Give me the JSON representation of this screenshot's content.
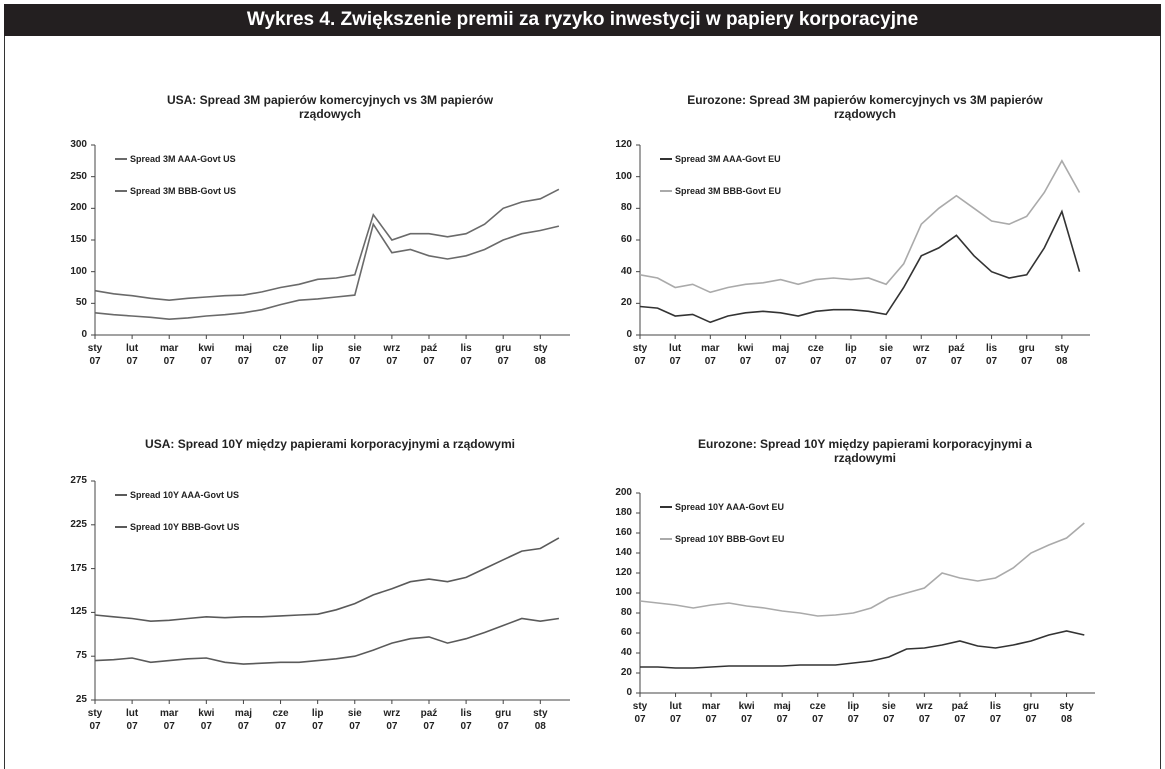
{
  "header": {
    "title": "Wykres 4. Zwiększenie premii za ryzyko inwestycji w papiery korporacyjne"
  },
  "chart_data": [
    {
      "type": "line",
      "title": "USA: Spread 3M papierów komercyjnych vs 3M papierów rządowych",
      "legend": "upper left",
      "x": [
        0,
        0.5,
        1,
        1.5,
        2,
        2.5,
        3,
        3.5,
        4,
        4.5,
        5,
        5.5,
        6,
        6.5,
        7,
        7.5,
        8,
        8.5,
        9,
        9.5,
        10,
        10.5,
        11,
        11.5,
        12,
        12.5
      ],
      "xlim": [
        0,
        12.8
      ],
      "xticks": [
        {
          "value": 0,
          "label": "sty 07"
        },
        {
          "value": 1,
          "label": "lut 07"
        },
        {
          "value": 2,
          "label": "mar 07"
        },
        {
          "value": 3,
          "label": "kwi 07"
        },
        {
          "value": 4,
          "label": "maj 07"
        },
        {
          "value": 5,
          "label": "cze 07"
        },
        {
          "value": 6,
          "label": "lip 07"
        },
        {
          "value": 7,
          "label": "sie 07"
        },
        {
          "value": 8,
          "label": "wrz 07"
        },
        {
          "value": 9,
          "label": "paź 07"
        },
        {
          "value": 10,
          "label": "lis 07"
        },
        {
          "value": 11,
          "label": "gru 07"
        },
        {
          "value": 12,
          "label": "sty 08"
        }
      ],
      "ylim": [
        0,
        300
      ],
      "yticks": [
        0,
        50,
        100,
        150,
        200,
        250,
        300
      ],
      "series": [
        {
          "name": "Spread 3M AAA-Govt US",
          "color": "#6a6a6a",
          "values": [
            35,
            32,
            30,
            28,
            25,
            27,
            30,
            32,
            35,
            40,
            48,
            55,
            57,
            60,
            63,
            175,
            130,
            135,
            125,
            120,
            125,
            135,
            150,
            160,
            165,
            172
          ]
        },
        {
          "name": "Spread 3M BBB-Govt US",
          "color": "#6a6a6a",
          "values": [
            70,
            65,
            62,
            58,
            55,
            58,
            60,
            62,
            63,
            68,
            75,
            80,
            88,
            90,
            95,
            190,
            150,
            160,
            160,
            155,
            160,
            175,
            200,
            210,
            215,
            230
          ]
        }
      ]
    },
    {
      "type": "line",
      "title": "Eurozone: Spread 3M papierów komercyjnych vs 3M papierów rządowych",
      "legend": "upper left",
      "x": [
        0,
        0.5,
        1,
        1.5,
        2,
        2.5,
        3,
        3.5,
        4,
        4.5,
        5,
        5.5,
        6,
        6.5,
        7,
        7.5,
        8,
        8.5,
        9,
        9.5,
        10,
        10.5,
        11,
        11.5,
        12,
        12.5
      ],
      "xlim": [
        0,
        12.8
      ],
      "xticks": [
        {
          "value": 0,
          "label": "sty 07"
        },
        {
          "value": 1,
          "label": "lut 07"
        },
        {
          "value": 2,
          "label": "mar 07"
        },
        {
          "value": 3,
          "label": "kwi 07"
        },
        {
          "value": 4,
          "label": "maj 07"
        },
        {
          "value": 5,
          "label": "cze 07"
        },
        {
          "value": 6,
          "label": "lip 07"
        },
        {
          "value": 7,
          "label": "sie 07"
        },
        {
          "value": 8,
          "label": "wrz 07"
        },
        {
          "value": 9,
          "label": "paź 07"
        },
        {
          "value": 10,
          "label": "lis 07"
        },
        {
          "value": 11,
          "label": "gru 07"
        },
        {
          "value": 12,
          "label": "sty 08"
        }
      ],
      "ylim": [
        0,
        120
      ],
      "yticks": [
        0,
        20,
        40,
        60,
        80,
        100,
        120
      ],
      "series": [
        {
          "name": "Spread 3M AAA-Govt EU",
          "color": "#333333",
          "values": [
            18,
            17,
            12,
            13,
            8,
            12,
            14,
            15,
            14,
            12,
            15,
            16,
            16,
            15,
            13,
            30,
            50,
            55,
            63,
            50,
            40,
            36,
            38,
            55,
            78,
            40
          ]
        },
        {
          "name": "Spread 3M BBB-Govt EU",
          "color": "#aaaaaa",
          "values": [
            38,
            36,
            30,
            32,
            27,
            30,
            32,
            33,
            35,
            32,
            35,
            36,
            35,
            36,
            32,
            45,
            70,
            80,
            88,
            80,
            72,
            70,
            75,
            90,
            110,
            90
          ]
        }
      ]
    },
    {
      "type": "line",
      "title": "USA: Spread 10Y między papierami korporacyjnymi a rządowymi",
      "legend": "upper left",
      "x": [
        0,
        0.5,
        1,
        1.5,
        2,
        2.5,
        3,
        3.5,
        4,
        4.5,
        5,
        5.5,
        6,
        6.5,
        7,
        7.5,
        8,
        8.5,
        9,
        9.5,
        10,
        10.5,
        11,
        11.5,
        12,
        12.5
      ],
      "xlim": [
        0,
        12.8
      ],
      "xticks": [
        {
          "value": 0,
          "label": "sty 07"
        },
        {
          "value": 1,
          "label": "lut 07"
        },
        {
          "value": 2,
          "label": "mar 07"
        },
        {
          "value": 3,
          "label": "kwi 07"
        },
        {
          "value": 4,
          "label": "maj 07"
        },
        {
          "value": 5,
          "label": "cze 07"
        },
        {
          "value": 6,
          "label": "lip 07"
        },
        {
          "value": 7,
          "label": "sie 07"
        },
        {
          "value": 8,
          "label": "wrz 07"
        },
        {
          "value": 9,
          "label": "paź 07"
        },
        {
          "value": 10,
          "label": "lis 07"
        },
        {
          "value": 11,
          "label": "gru 07"
        },
        {
          "value": 12,
          "label": "sty 08"
        }
      ],
      "ylim": [
        25,
        275
      ],
      "yticks": [
        25,
        75,
        125,
        175,
        225,
        275
      ],
      "series": [
        {
          "name": "Spread 10Y AAA-Govt US",
          "color": "#5a5a5a",
          "values": [
            70,
            71,
            73,
            68,
            70,
            72,
            73,
            68,
            66,
            67,
            68,
            68,
            70,
            72,
            75,
            82,
            90,
            95,
            97,
            90,
            95,
            102,
            110,
            118,
            115,
            118
          ]
        },
        {
          "name": "Spread 10Y BBB-Govt US",
          "color": "#5a5a5a",
          "values": [
            122,
            120,
            118,
            115,
            116,
            118,
            120,
            119,
            120,
            120,
            121,
            122,
            123,
            128,
            135,
            145,
            152,
            160,
            163,
            160,
            165,
            175,
            185,
            195,
            198,
            210
          ]
        }
      ]
    },
    {
      "type": "line",
      "title": "Eurozone:  Spread 10Y między papierami korporacyjnymi a rządowymi",
      "legend": "upper left",
      "x": [
        0,
        0.5,
        1,
        1.5,
        2,
        2.5,
        3,
        3.5,
        4,
        4.5,
        5,
        5.5,
        6,
        6.5,
        7,
        7.5,
        8,
        8.5,
        9,
        9.5,
        10,
        10.5,
        11,
        11.5,
        12,
        12.5
      ],
      "xlim": [
        0,
        12.8
      ],
      "xticks": [
        {
          "value": 0,
          "label": "sty 07"
        },
        {
          "value": 1,
          "label": "lut 07"
        },
        {
          "value": 2,
          "label": "mar 07"
        },
        {
          "value": 3,
          "label": "kwi 07"
        },
        {
          "value": 4,
          "label": "maj 07"
        },
        {
          "value": 5,
          "label": "cze 07"
        },
        {
          "value": 6,
          "label": "lip 07"
        },
        {
          "value": 7,
          "label": "sie 07"
        },
        {
          "value": 8,
          "label": "wrz 07"
        },
        {
          "value": 9,
          "label": "paź 07"
        },
        {
          "value": 10,
          "label": "lis 07"
        },
        {
          "value": 11,
          "label": "gru 07"
        },
        {
          "value": 12,
          "label": "sty 08"
        }
      ],
      "ylim": [
        0,
        200
      ],
      "yticks": [
        0,
        20,
        40,
        60,
        80,
        100,
        120,
        140,
        160,
        180,
        200
      ],
      "series": [
        {
          "name": "Spread 10Y AAA-Govt EU",
          "color": "#333333",
          "values": [
            26,
            26,
            25,
            25,
            26,
            27,
            27,
            27,
            27,
            28,
            28,
            28,
            30,
            32,
            36,
            44,
            45,
            48,
            52,
            47,
            45,
            48,
            52,
            58,
            62,
            58
          ]
        },
        {
          "name": "Spread 10Y BBB-Govt EU",
          "color": "#aaaaaa",
          "values": [
            92,
            90,
            88,
            85,
            88,
            90,
            87,
            85,
            82,
            80,
            77,
            78,
            80,
            85,
            95,
            100,
            105,
            120,
            115,
            112,
            115,
            125,
            140,
            148,
            155,
            170
          ]
        }
      ]
    }
  ]
}
